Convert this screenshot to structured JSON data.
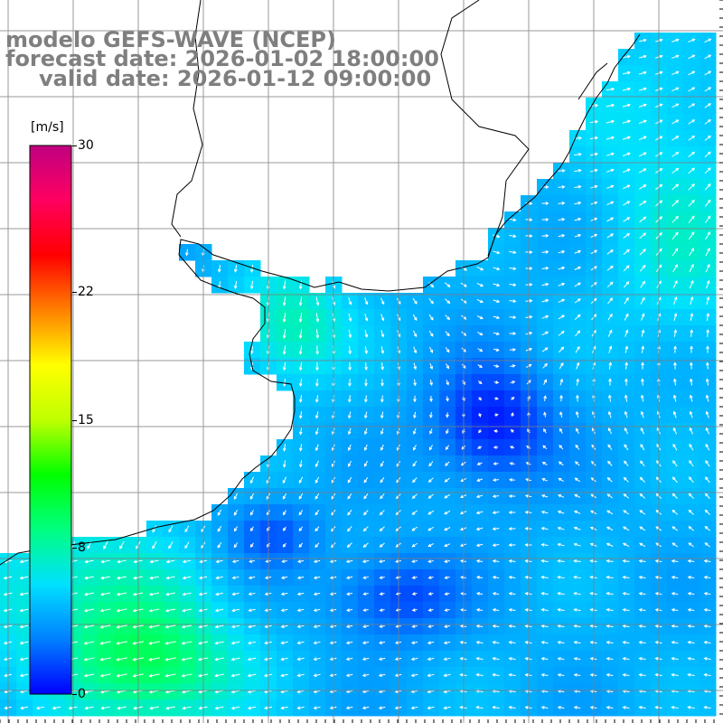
{
  "header": {
    "model": "modelo GEFS-WAVE (NCEP)",
    "forecast": "forecast date: 2026-01-02 18:00:00",
    "valid": "valid date: 2026-01-12 09:00:00"
  },
  "colorbar": {
    "unit": "[m/s]",
    "ticks": [
      "0",
      "8",
      "15",
      "22",
      "30"
    ],
    "tick_values": [
      0,
      8,
      15,
      22,
      30
    ],
    "min": 0,
    "max": 30,
    "stops": [
      "#0000ff",
      "#0080ff",
      "#00e0ff",
      "#00ff80",
      "#00ff00",
      "#c0ff00",
      "#ffff00",
      "#ff8000",
      "#ff0000",
      "#ff0060",
      "#c00080"
    ]
  },
  "colors": {
    "land": "#ffffff",
    "coast": "#000000",
    "grid": "#7f7f7f",
    "arrow": "#ffffff",
    "header_text": "#7f7f7f"
  }
}
